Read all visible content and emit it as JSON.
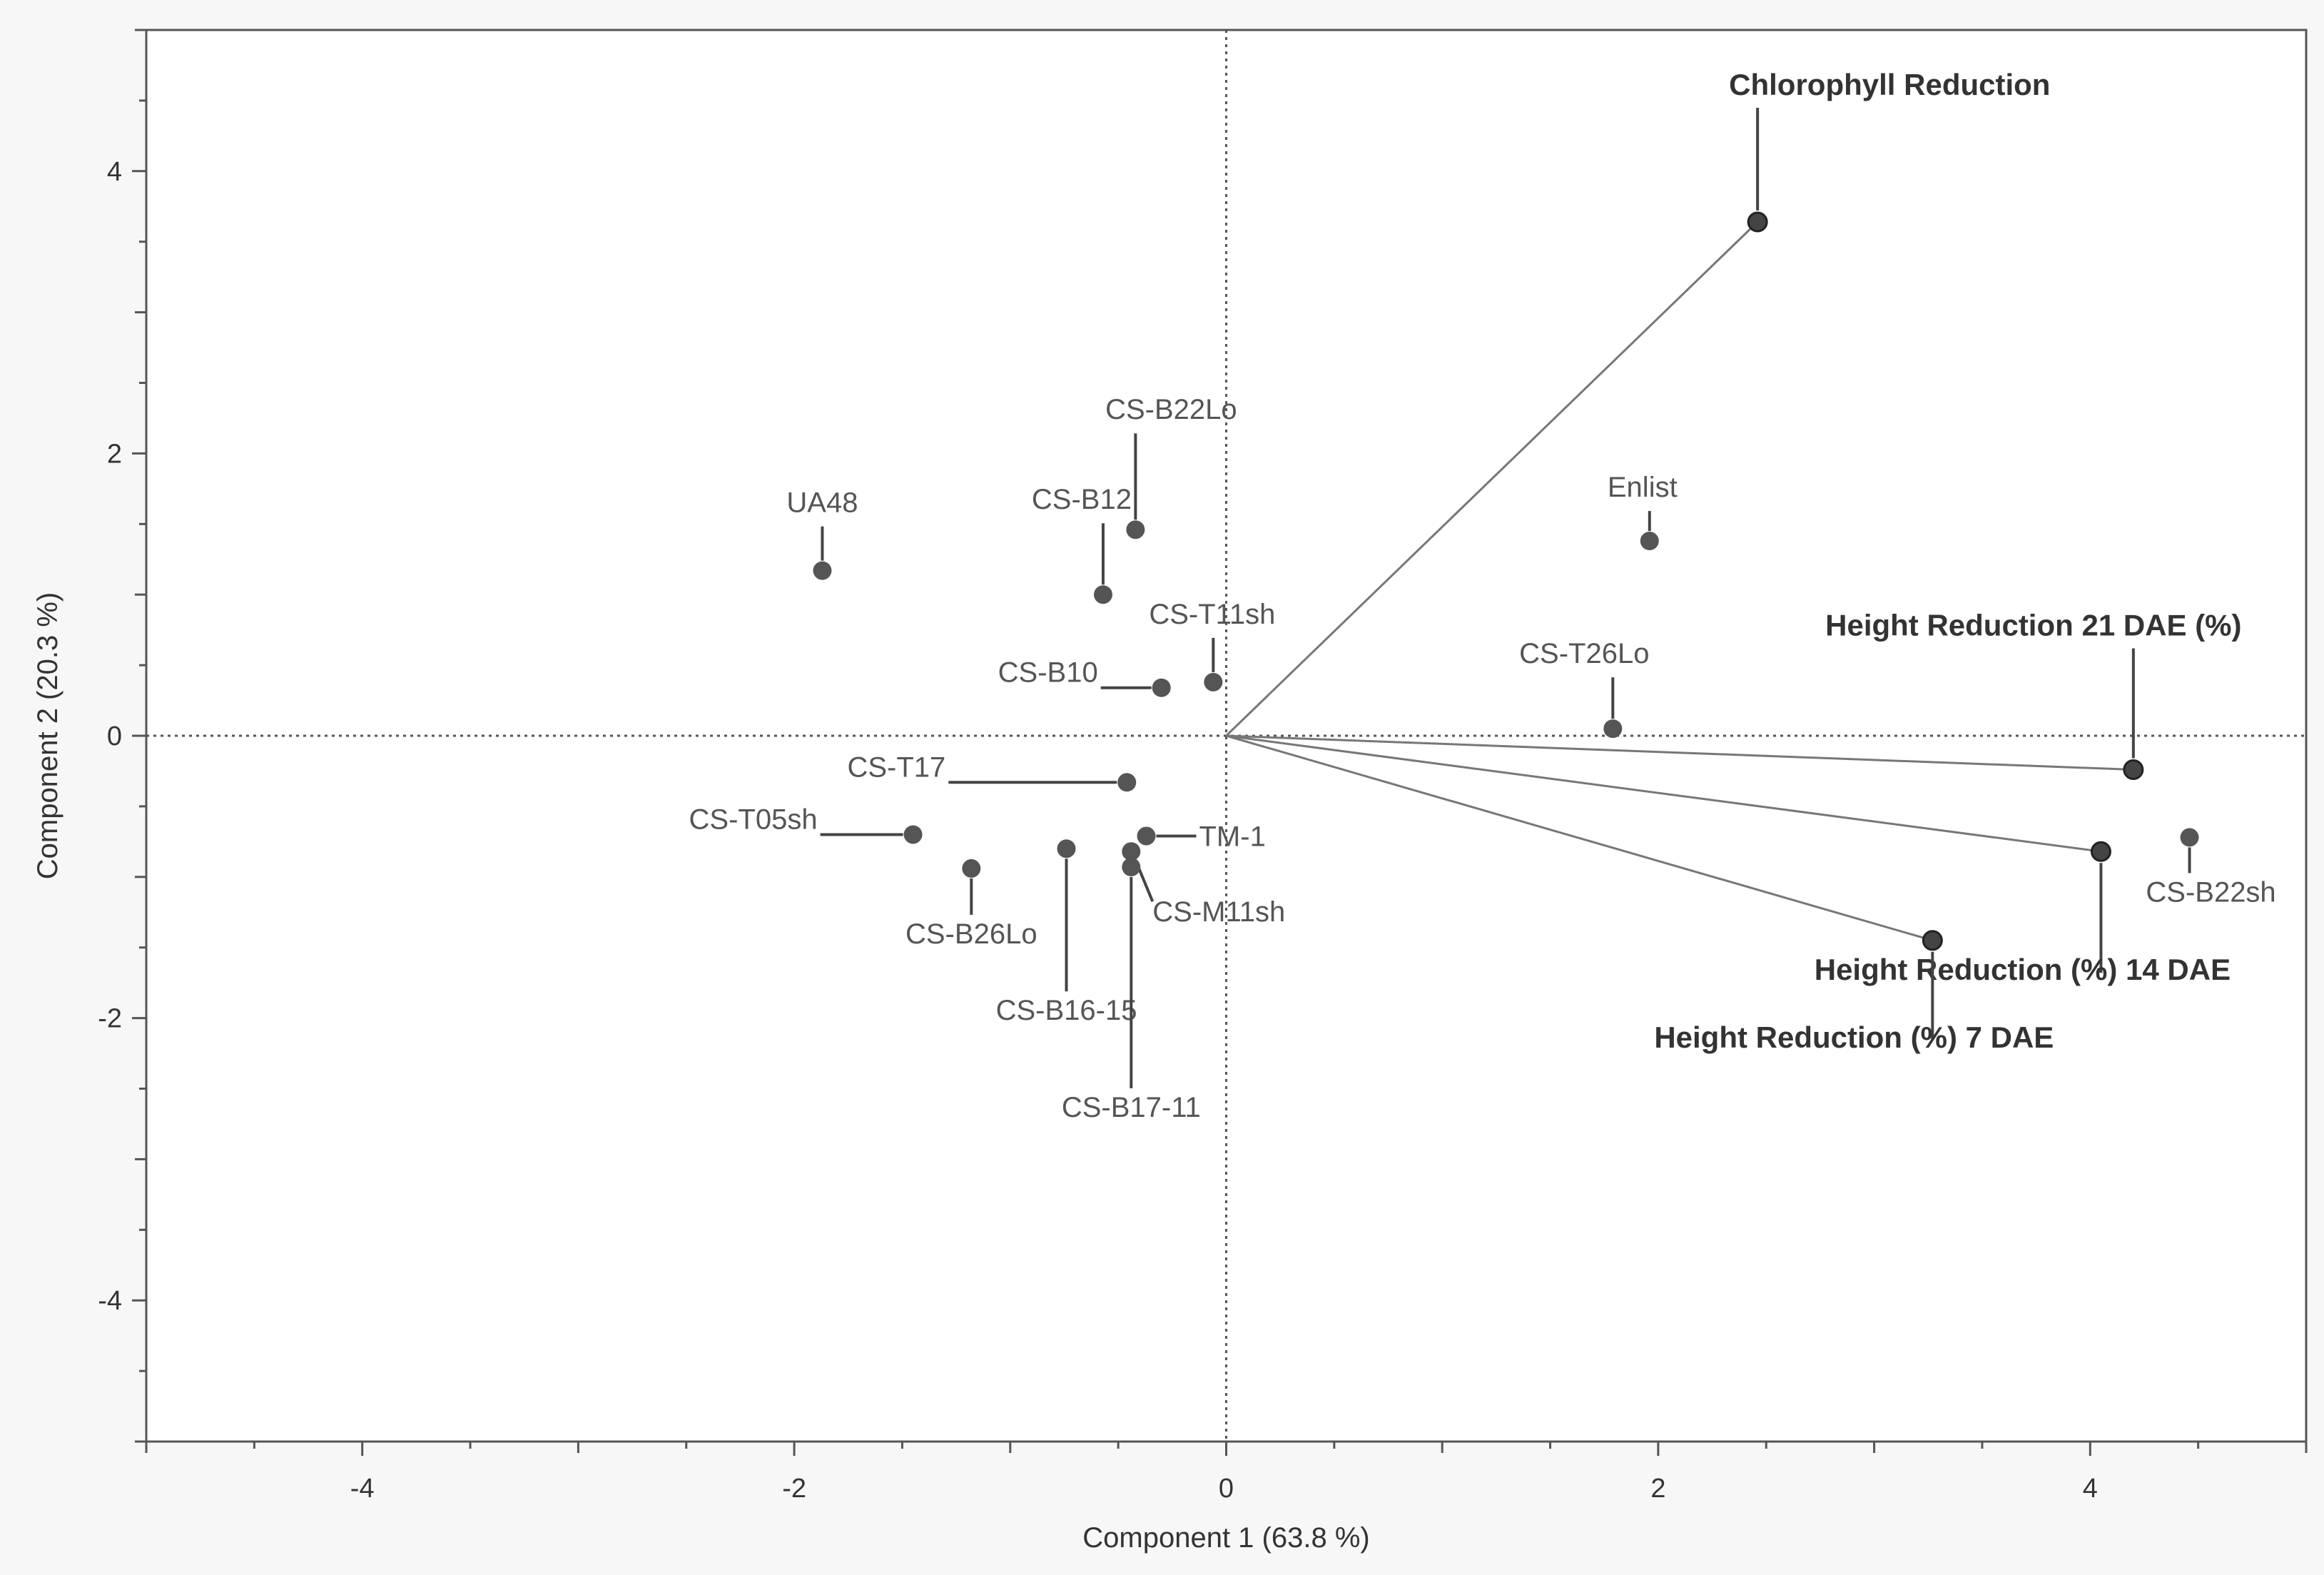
{
  "chart_data": {
    "type": "scatter",
    "subtype": "biplot",
    "xlabel": "Component 1  (63.8 %)",
    "ylabel": "Component 2  (20.3 %)",
    "xlim": [
      -5,
      5
    ],
    "ylim": [
      -5,
      5
    ],
    "xticks": [
      -4,
      -2,
      0,
      2,
      4
    ],
    "yticks": [
      -4,
      -2,
      0,
      2,
      4
    ],
    "xtick_labels": [
      "-4",
      "-2",
      "0",
      "2",
      "4"
    ],
    "ytick_labels": [
      "-4",
      "-2",
      "0",
      "2",
      "4"
    ],
    "reference_lines": {
      "x": 0,
      "y": 0,
      "style": "dotted"
    },
    "points": [
      {
        "label": "UA48",
        "x": -1.87,
        "y": 1.17
      },
      {
        "label": "CS-B22Lo",
        "x": -0.42,
        "y": 1.46
      },
      {
        "label": "CS-B12",
        "x": -0.57,
        "y": 1.0
      },
      {
        "label": "CS-T11sh",
        "x": -0.06,
        "y": 0.38
      },
      {
        "label": "CS-B10",
        "x": -0.3,
        "y": 0.34
      },
      {
        "label": "Enlist",
        "x": 1.96,
        "y": 1.38
      },
      {
        "label": "CS-T26Lo",
        "x": 1.79,
        "y": 0.05
      },
      {
        "label": "CS-T17",
        "x": -0.46,
        "y": -0.33
      },
      {
        "label": "CS-T05sh",
        "x": -1.45,
        "y": -0.7
      },
      {
        "label": "TM-1",
        "x": -0.37,
        "y": -0.71
      },
      {
        "label": "CS-B26Lo",
        "x": -1.18,
        "y": -0.94
      },
      {
        "label": "CS-B16-15",
        "x": -0.74,
        "y": -0.8
      },
      {
        "label": "CS-M11sh",
        "x": -0.44,
        "y": -0.82
      },
      {
        "label": "CS-B17-11",
        "x": -0.44,
        "y": -0.93
      },
      {
        "label": "CS-B22sh",
        "x": 4.46,
        "y": -0.72
      }
    ],
    "vectors": [
      {
        "label": "Chlorophyll Reduction",
        "x": 2.46,
        "y": 3.64
      },
      {
        "label": "Height Reduction 21 DAE (%)",
        "x": 4.2,
        "y": -0.24
      },
      {
        "label": "Height Reduction (%) 14 DAE",
        "x": 4.05,
        "y": -0.82
      },
      {
        "label": "Height Reduction (%) 7 DAE",
        "x": 3.27,
        "y": -1.45
      }
    ],
    "colors": {
      "point": "#555555",
      "vector": "#777777",
      "leader": "#444444",
      "frame": "#555555",
      "reference": "#555555"
    }
  }
}
